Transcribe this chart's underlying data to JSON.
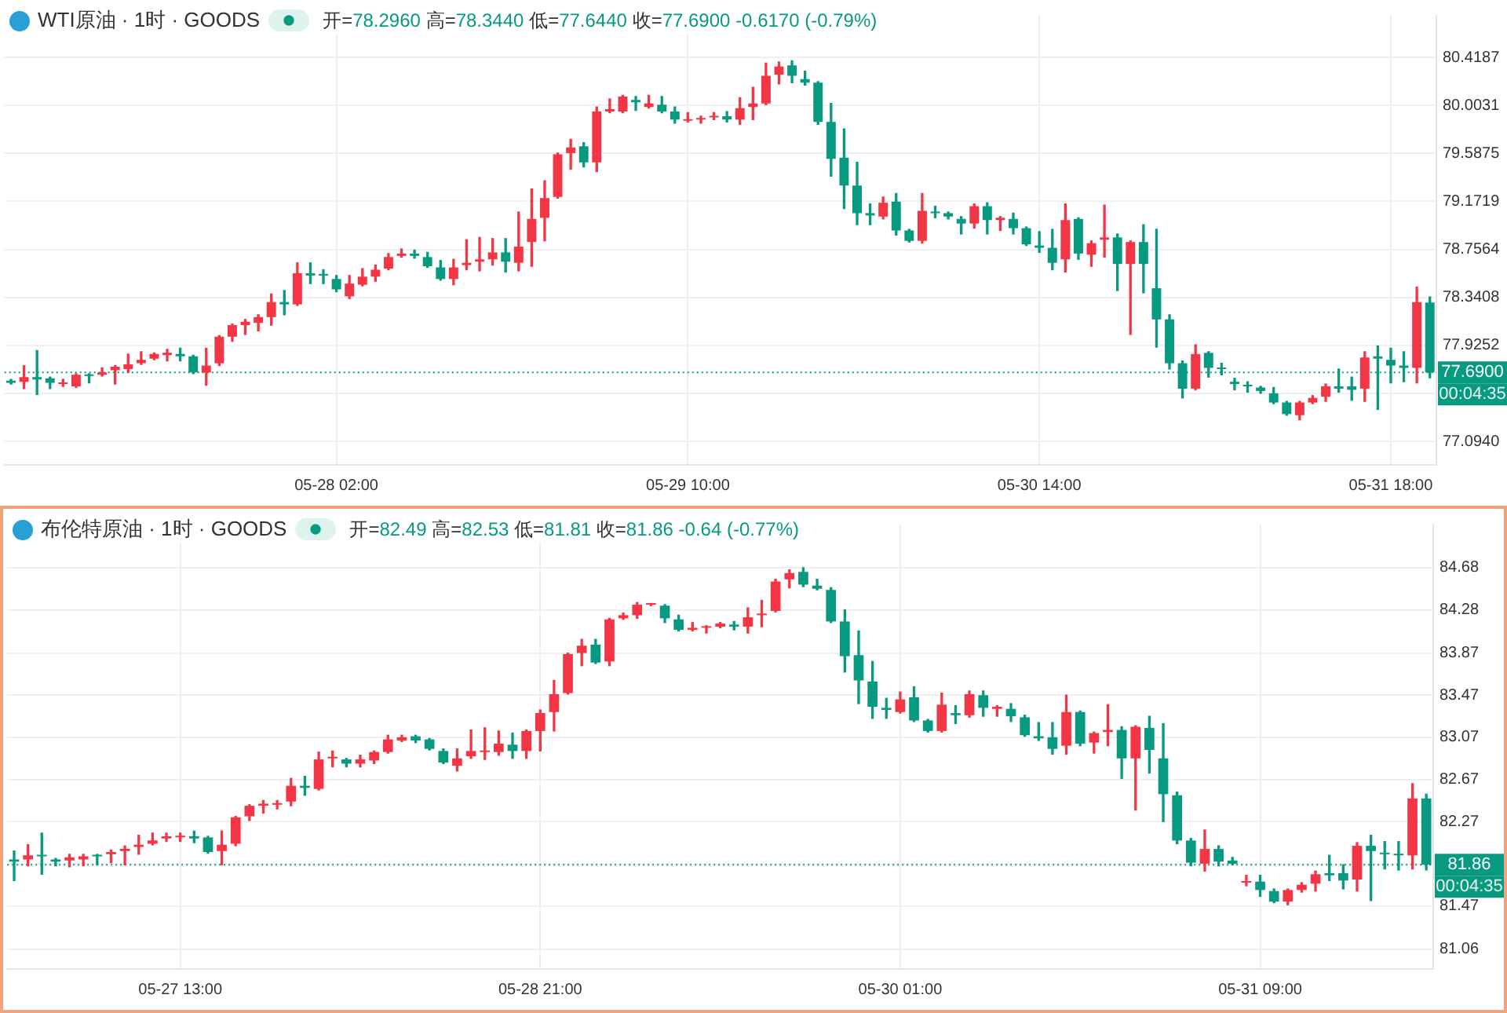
{
  "chart_data": [
    {
      "type": "candlestick",
      "title": "WTI原油 · 1时 · GOODS",
      "subtitle": "开=78.2960 高=78.3440 低=77.6440 收=77.6900 -0.6170 (-0.79%)",
      "categories": [
        null,
        null,
        null,
        null,
        null,
        null,
        null,
        null,
        null,
        null,
        null,
        null,
        null,
        null,
        null,
        null,
        null,
        null,
        null,
        null,
        null,
        null,
        null,
        null,
        null,
        "05-28 02:00",
        null,
        null,
        null,
        null,
        null,
        null,
        null,
        null,
        null,
        null,
        null,
        null,
        null,
        null,
        null,
        null,
        null,
        null,
        null,
        null,
        null,
        null,
        null,
        null,
        null,
        null,
        "05-29 10:00",
        null,
        null,
        null,
        null,
        null,
        null,
        null,
        null,
        null,
        null,
        null,
        null,
        null,
        null,
        null,
        null,
        null,
        null,
        null,
        null,
        null,
        null,
        null,
        null,
        null,
        null,
        "05-30 14:00",
        null,
        null,
        null,
        null,
        null,
        null,
        null,
        null,
        null,
        null,
        null,
        null,
        null,
        null,
        null,
        null,
        null,
        null,
        null,
        null,
        null,
        null,
        null,
        null,
        null,
        null,
        "05-31 18:00",
        null,
        null,
        null
      ],
      "ohlc": [
        [
          77.62,
          77.63,
          77.59,
          77.6
        ],
        [
          77.61,
          77.75,
          77.55,
          77.65
        ],
        [
          77.65,
          77.88,
          77.5,
          77.63
        ],
        [
          77.64,
          77.65,
          77.55,
          77.6
        ],
        [
          77.59,
          77.63,
          77.57,
          77.6
        ],
        [
          77.57,
          77.68,
          77.56,
          77.67
        ],
        [
          77.67,
          77.68,
          77.6,
          77.66
        ],
        [
          77.67,
          77.73,
          77.66,
          77.69
        ],
        [
          77.71,
          77.75,
          77.59,
          77.74
        ],
        [
          77.72,
          77.85,
          77.69,
          77.76
        ],
        [
          77.77,
          77.87,
          77.76,
          77.8
        ],
        [
          77.81,
          77.86,
          77.8,
          77.85
        ],
        [
          77.84,
          77.89,
          77.79,
          77.86
        ],
        [
          77.85,
          77.9,
          77.79,
          77.83
        ],
        [
          77.83,
          77.84,
          77.68,
          77.69
        ],
        [
          77.69,
          77.9,
          77.58,
          77.75
        ],
        [
          77.77,
          78.01,
          77.75,
          78.0
        ],
        [
          78.0,
          78.11,
          77.96,
          78.1
        ],
        [
          78.1,
          78.15,
          78.02,
          78.13
        ],
        [
          78.12,
          78.19,
          78.05,
          78.17
        ],
        [
          78.17,
          78.37,
          78.1,
          78.3
        ],
        [
          78.3,
          78.4,
          78.19,
          78.28
        ],
        [
          78.28,
          78.64,
          78.27,
          78.55
        ],
        [
          78.55,
          78.64,
          78.46,
          78.53
        ],
        [
          78.54,
          78.58,
          78.46,
          78.53
        ],
        [
          78.5,
          78.53,
          78.39,
          78.41
        ],
        [
          78.35,
          78.53,
          78.33,
          78.46
        ],
        [
          78.45,
          78.59,
          78.44,
          78.52
        ],
        [
          78.52,
          78.62,
          78.48,
          78.58
        ],
        [
          78.59,
          78.72,
          78.58,
          78.69
        ],
        [
          78.7,
          78.76,
          78.69,
          78.72
        ],
        [
          78.72,
          78.75,
          78.68,
          78.7
        ],
        [
          78.69,
          78.73,
          78.6,
          78.61
        ],
        [
          78.6,
          78.66,
          78.49,
          78.5
        ],
        [
          78.5,
          78.67,
          78.45,
          78.6
        ],
        [
          78.62,
          78.84,
          78.58,
          78.64
        ],
        [
          78.65,
          78.86,
          78.57,
          78.67
        ],
        [
          78.67,
          78.85,
          78.62,
          78.73
        ],
        [
          78.73,
          78.85,
          78.56,
          78.65
        ],
        [
          78.64,
          79.08,
          78.57,
          78.78
        ],
        [
          78.82,
          79.28,
          78.61,
          79.02
        ],
        [
          79.03,
          79.35,
          78.83,
          79.2
        ],
        [
          79.21,
          79.59,
          79.2,
          79.58
        ],
        [
          79.59,
          79.71,
          79.45,
          79.64
        ],
        [
          79.65,
          79.68,
          79.47,
          79.51
        ],
        [
          79.51,
          79.99,
          79.43,
          79.95
        ],
        [
          79.95,
          80.06,
          79.94,
          79.97
        ],
        [
          79.95,
          80.09,
          79.94,
          80.08
        ],
        [
          80.05,
          80.08,
          79.96,
          80.03
        ],
        [
          79.99,
          80.09,
          79.98,
          80.02
        ],
        [
          80.01,
          80.08,
          79.94,
          79.95
        ],
        [
          79.95,
          79.99,
          79.85,
          79.88
        ],
        [
          79.87,
          79.94,
          79.86,
          79.88
        ],
        [
          79.88,
          79.91,
          79.85,
          79.89
        ],
        [
          79.9,
          79.94,
          79.88,
          79.91
        ],
        [
          79.91,
          79.95,
          79.86,
          79.88
        ],
        [
          79.88,
          80.07,
          79.84,
          79.98
        ],
        [
          79.99,
          80.16,
          79.88,
          80.02
        ],
        [
          80.02,
          80.37,
          80.01,
          80.26
        ],
        [
          80.27,
          80.38,
          80.19,
          80.34
        ],
        [
          80.35,
          80.39,
          80.2,
          80.26
        ],
        [
          80.23,
          80.3,
          80.18,
          80.2
        ],
        [
          80.2,
          80.21,
          79.84,
          79.86
        ],
        [
          79.86,
          80.02,
          79.39,
          79.54
        ],
        [
          79.55,
          79.8,
          79.11,
          79.31
        ],
        [
          79.31,
          79.51,
          78.97,
          79.07
        ],
        [
          79.07,
          79.15,
          78.97,
          79.05
        ],
        [
          79.04,
          79.21,
          79.02,
          79.16
        ],
        [
          79.17,
          79.24,
          78.88,
          78.92
        ],
        [
          78.92,
          78.93,
          78.82,
          78.83
        ],
        [
          78.83,
          79.24,
          78.81,
          79.09
        ],
        [
          79.08,
          79.13,
          79.03,
          79.07
        ],
        [
          79.07,
          79.08,
          79.02,
          79.04
        ],
        [
          79.02,
          79.04,
          78.89,
          78.98
        ],
        [
          78.98,
          79.15,
          78.94,
          79.13
        ],
        [
          79.13,
          79.16,
          78.89,
          79.01
        ],
        [
          79.01,
          79.04,
          78.92,
          79.03
        ],
        [
          79.02,
          79.07,
          78.89,
          78.94
        ],
        [
          78.94,
          78.95,
          78.79,
          78.8
        ],
        [
          78.79,
          78.91,
          78.73,
          78.77
        ],
        [
          78.77,
          78.93,
          78.58,
          78.64
        ],
        [
          78.67,
          79.15,
          78.56,
          79.01
        ],
        [
          79.02,
          79.03,
          78.67,
          78.72
        ],
        [
          78.71,
          78.83,
          78.61,
          78.81
        ],
        [
          78.84,
          79.14,
          78.69,
          78.86
        ],
        [
          78.86,
          78.89,
          78.4,
          78.63
        ],
        [
          78.63,
          78.83,
          78.02,
          78.82
        ],
        [
          78.82,
          78.97,
          78.38,
          78.63
        ],
        [
          78.42,
          78.93,
          77.91,
          78.15
        ],
        [
          78.15,
          78.19,
          77.72,
          77.77
        ],
        [
          77.77,
          77.79,
          77.47,
          77.55
        ],
        [
          77.55,
          77.93,
          77.54,
          77.85
        ],
        [
          77.86,
          77.87,
          77.65,
          77.73
        ],
        [
          77.73,
          77.77,
          77.67,
          77.72
        ],
        [
          77.61,
          77.64,
          77.54,
          77.59
        ],
        [
          77.58,
          77.61,
          77.52,
          77.57
        ],
        [
          77.56,
          77.57,
          77.51,
          77.53
        ],
        [
          77.51,
          77.56,
          77.42,
          77.43
        ],
        [
          77.43,
          77.44,
          77.32,
          77.33
        ],
        [
          77.32,
          77.44,
          77.28,
          77.43
        ],
        [
          77.43,
          77.49,
          77.42,
          77.47
        ],
        [
          77.48,
          77.59,
          77.44,
          77.57
        ],
        [
          77.57,
          77.72,
          77.52,
          77.55
        ],
        [
          77.57,
          77.65,
          77.45,
          77.54
        ],
        [
          77.55,
          77.87,
          77.44,
          77.82
        ],
        [
          77.83,
          77.92,
          77.37,
          77.81
        ],
        [
          77.8,
          77.9,
          77.6,
          77.75
        ],
        [
          77.75,
          77.87,
          77.61,
          77.73
        ],
        [
          77.73,
          78.43,
          77.6,
          78.3
        ],
        [
          78.296,
          78.344,
          77.644,
          77.69
        ]
      ],
      "colors": [
        "#089981",
        "#f23645",
        "#089981",
        "#089981",
        "#f23645",
        "#f23645",
        "#089981",
        "#f23645",
        "#f23645",
        "#f23645",
        "#f23645",
        "#f23645",
        "#f23645",
        "#089981",
        "#089981",
        "#f23645",
        "#f23645",
        "#f23645",
        "#f23645",
        "#f23645",
        "#f23645",
        "#089981",
        "#f23645",
        "#089981",
        "#089981",
        "#089981",
        "#f23645",
        "#f23645",
        "#f23645",
        "#f23645",
        "#f23645",
        "#089981",
        "#089981",
        "#089981",
        "#f23645",
        "#f23645",
        "#f23645",
        "#f23645",
        "#089981",
        "#f23645",
        "#f23645",
        "#f23645",
        "#f23645",
        "#f23645",
        "#089981",
        "#f23645",
        "#f23645",
        "#f23645",
        "#089981",
        "#f23645",
        "#089981",
        "#089981",
        "#f23645",
        "#f23645",
        "#f23645",
        "#089981",
        "#f23645",
        "#f23645",
        "#f23645",
        "#f23645",
        "#089981",
        "#089981",
        "#089981",
        "#089981",
        "#089981",
        "#089981",
        "#089981",
        "#f23645",
        "#089981",
        "#089981",
        "#f23645",
        "#089981",
        "#089981",
        "#089981",
        "#f23645",
        "#089981",
        "#f23645",
        "#089981",
        "#089981",
        "#089981",
        "#089981",
        "#f23645",
        "#089981",
        "#f23645",
        "#f23645",
        "#089981",
        "#f23645",
        "#089981",
        "#089981",
        "#089981",
        "#089981",
        "#f23645",
        "#089981",
        "#089981",
        "#089981",
        "#089981",
        "#089981",
        "#089981",
        "#089981",
        "#f23645",
        "#f23645",
        "#f23645",
        "#089981",
        "#089981",
        "#f23645",
        "#089981",
        "#089981",
        "#089981",
        "#f23645",
        "#089981"
      ],
      "ylim": [
        76.89,
        80.78
      ],
      "yticks": [
        80.4187,
        80.0031,
        79.5875,
        79.1719,
        78.7564,
        78.3408,
        77.9252,
        {
          "value": 77.5096,
          "label": null
        },
        {
          "value": 77.094,
          "label": "77.0940"
        }
      ],
      "grid": true,
      "ref_lines": [
        {
          "axis": "y",
          "value": 77.69,
          "label": "77.6900",
          "color": "#089981",
          "line_style": "dotted"
        }
      ],
      "annotations": [
        "00:04:35"
      ]
    },
    {
      "type": "candlestick",
      "title": "布伦特原油 · 1时 · GOODS",
      "subtitle": "开=82.49 高=82.53 低=81.81 收=81.86 -0.64 (-0.77%)",
      "categories": [
        null,
        null,
        null,
        null,
        null,
        null,
        null,
        null,
        null,
        null,
        null,
        null,
        "05-27 13:00",
        null,
        null,
        null,
        null,
        null,
        null,
        null,
        null,
        null,
        null,
        null,
        null,
        null,
        null,
        null,
        null,
        null,
        null,
        null,
        null,
        null,
        null,
        null,
        null,
        null,
        "05-28 21:00",
        null,
        null,
        null,
        null,
        null,
        null,
        null,
        null,
        null,
        null,
        null,
        null,
        null,
        null,
        null,
        null,
        null,
        null,
        null,
        null,
        null,
        null,
        null,
        null,
        null,
        "05-30 01:00",
        null,
        null,
        null,
        null,
        null,
        null,
        null,
        null,
        null,
        null,
        null,
        null,
        null,
        null,
        null,
        null,
        null,
        null,
        null,
        null,
        null,
        null,
        null,
        null,
        null,
        "05-31 09:00",
        null,
        null,
        null,
        null,
        null,
        null,
        null,
        null,
        null,
        null,
        null,
        null
      ],
      "ohlc": [
        [
          81.91,
          81.99,
          81.71,
          81.89
        ],
        [
          81.91,
          82.05,
          81.85,
          81.95
        ],
        [
          81.95,
          82.16,
          81.77,
          81.94
        ],
        [
          81.91,
          81.92,
          81.85,
          81.89
        ],
        [
          81.9,
          81.96,
          81.84,
          81.93
        ],
        [
          81.91,
          81.96,
          81.85,
          81.94
        ],
        [
          81.95,
          81.96,
          81.86,
          81.94
        ],
        [
          81.96,
          82.0,
          81.88,
          81.98
        ],
        [
          81.99,
          82.04,
          81.86,
          82.01
        ],
        [
          82.03,
          82.14,
          81.96,
          82.05
        ],
        [
          82.06,
          82.16,
          82.05,
          82.09
        ],
        [
          82.11,
          82.16,
          82.08,
          82.13
        ],
        [
          82.12,
          82.16,
          82.08,
          82.13
        ],
        [
          82.13,
          82.18,
          82.07,
          82.11
        ],
        [
          82.12,
          82.13,
          81.97,
          81.98
        ],
        [
          81.99,
          82.18,
          81.86,
          82.05
        ],
        [
          82.06,
          82.32,
          82.04,
          82.31
        ],
        [
          82.32,
          82.43,
          82.28,
          82.42
        ],
        [
          82.42,
          82.47,
          82.35,
          82.44
        ],
        [
          82.43,
          82.47,
          82.39,
          82.44
        ],
        [
          82.46,
          82.68,
          82.42,
          82.61
        ],
        [
          82.61,
          82.7,
          82.52,
          82.59
        ],
        [
          82.58,
          82.93,
          82.57,
          82.86
        ],
        [
          82.87,
          82.94,
          82.79,
          82.88
        ],
        [
          82.86,
          82.87,
          82.79,
          82.82
        ],
        [
          82.82,
          82.9,
          82.79,
          82.86
        ],
        [
          82.85,
          82.94,
          82.82,
          82.93
        ],
        [
          82.93,
          83.09,
          82.92,
          83.05
        ],
        [
          83.04,
          83.09,
          83.03,
          83.07
        ],
        [
          83.08,
          83.09,
          83.02,
          83.04
        ],
        [
          83.05,
          83.06,
          82.95,
          82.96
        ],
        [
          82.94,
          82.96,
          82.82,
          82.83
        ],
        [
          82.8,
          82.96,
          82.75,
          82.87
        ],
        [
          82.89,
          83.14,
          82.87,
          82.94
        ],
        [
          82.93,
          83.16,
          82.86,
          82.94
        ],
        [
          82.93,
          83.13,
          82.9,
          83.01
        ],
        [
          83.0,
          83.11,
          82.87,
          82.94
        ],
        [
          82.94,
          83.14,
          82.87,
          83.13
        ],
        [
          83.13,
          83.33,
          82.94,
          83.3
        ],
        [
          83.31,
          83.61,
          83.13,
          83.48
        ],
        [
          83.49,
          83.87,
          83.48,
          83.86
        ],
        [
          83.87,
          84.0,
          83.75,
          83.94
        ],
        [
          83.95,
          84.0,
          83.77,
          83.78
        ],
        [
          83.79,
          84.2,
          83.75,
          84.19
        ],
        [
          84.2,
          84.25,
          84.19,
          84.23
        ],
        [
          84.23,
          84.35,
          84.2,
          84.33
        ],
        [
          84.33,
          84.34,
          84.32,
          84.33
        ],
        [
          84.32,
          84.33,
          84.16,
          84.2
        ],
        [
          84.19,
          84.23,
          84.08,
          84.09
        ],
        [
          84.09,
          84.16,
          84.08,
          84.11
        ],
        [
          84.11,
          84.13,
          84.06,
          84.12
        ],
        [
          84.12,
          84.16,
          84.11,
          84.15
        ],
        [
          84.14,
          84.17,
          84.09,
          84.12
        ],
        [
          84.12,
          84.3,
          84.06,
          84.21
        ],
        [
          84.23,
          84.37,
          84.12,
          84.24
        ],
        [
          84.27,
          84.57,
          84.26,
          84.55
        ],
        [
          84.57,
          84.66,
          84.49,
          84.63
        ],
        [
          84.64,
          84.68,
          84.5,
          84.52
        ],
        [
          84.51,
          84.57,
          84.47,
          84.48
        ],
        [
          84.47,
          84.49,
          84.16,
          84.17
        ],
        [
          84.17,
          84.28,
          83.69,
          83.84
        ],
        [
          83.85,
          84.08,
          83.39,
          83.61
        ],
        [
          83.6,
          83.79,
          83.25,
          83.36
        ],
        [
          83.35,
          83.44,
          83.25,
          83.33
        ],
        [
          83.31,
          83.5,
          83.3,
          83.43
        ],
        [
          83.45,
          83.55,
          83.22,
          83.23
        ],
        [
          83.23,
          83.24,
          83.12,
          83.13
        ],
        [
          83.13,
          83.49,
          83.12,
          83.38
        ],
        [
          83.3,
          83.37,
          83.2,
          83.28
        ],
        [
          83.28,
          83.51,
          83.26,
          83.48
        ],
        [
          83.47,
          83.51,
          83.27,
          83.35
        ],
        [
          83.34,
          83.37,
          83.27,
          83.36
        ],
        [
          83.34,
          83.39,
          83.22,
          83.27
        ],
        [
          83.26,
          83.28,
          83.08,
          83.09
        ],
        [
          83.08,
          83.21,
          83.04,
          83.06
        ],
        [
          83.07,
          83.21,
          82.91,
          82.96
        ],
        [
          82.99,
          83.47,
          82.91,
          83.31
        ],
        [
          83.31,
          83.32,
          82.99,
          83.01
        ],
        [
          83.02,
          83.12,
          82.92,
          83.11
        ],
        [
          83.12,
          83.38,
          82.99,
          83.14
        ],
        [
          83.14,
          83.17,
          82.68,
          82.87
        ],
        [
          82.87,
          83.18,
          82.38,
          83.17
        ],
        [
          83.16,
          83.27,
          82.73,
          82.95
        ],
        [
          82.87,
          83.2,
          82.27,
          82.53
        ],
        [
          82.52,
          82.55,
          82.06,
          82.09
        ],
        [
          82.09,
          82.11,
          81.85,
          81.88
        ],
        [
          81.87,
          82.19,
          81.8,
          82.01
        ],
        [
          82.01,
          82.04,
          81.85,
          81.89
        ],
        [
          81.9,
          81.93,
          81.86,
          81.87
        ],
        [
          81.69,
          81.76,
          81.66,
          81.7
        ],
        [
          81.7,
          81.76,
          81.56,
          81.62
        ],
        [
          81.61,
          81.63,
          81.5,
          81.51
        ],
        [
          81.51,
          81.63,
          81.48,
          81.62
        ],
        [
          81.62,
          81.69,
          81.6,
          81.67
        ],
        [
          81.68,
          81.8,
          81.61,
          81.77
        ],
        [
          81.78,
          81.95,
          81.71,
          81.76
        ],
        [
          81.78,
          81.86,
          81.63,
          81.71
        ],
        [
          81.72,
          82.07,
          81.61,
          82.04
        ],
        [
          82.04,
          82.14,
          81.52,
          81.99
        ],
        [
          81.97,
          82.08,
          81.82,
          81.96
        ],
        [
          81.96,
          82.08,
          81.81,
          81.95
        ],
        [
          81.95,
          82.63,
          81.82,
          82.49
        ],
        [
          82.49,
          82.53,
          81.81,
          81.86
        ]
      ],
      "colors": [
        "#089981",
        "#f23645",
        "#089981",
        "#089981",
        "#f23645",
        "#f23645",
        "#089981",
        "#f23645",
        "#f23645",
        "#f23645",
        "#f23645",
        "#f23645",
        "#f23645",
        "#089981",
        "#089981",
        "#f23645",
        "#f23645",
        "#f23645",
        "#f23645",
        "#f23645",
        "#f23645",
        "#089981",
        "#f23645",
        "#f23645",
        "#089981",
        "#f23645",
        "#f23645",
        "#f23645",
        "#f23645",
        "#089981",
        "#089981",
        "#089981",
        "#f23645",
        "#f23645",
        "#f23645",
        "#f23645",
        "#089981",
        "#f23645",
        "#f23645",
        "#f23645",
        "#f23645",
        "#f23645",
        "#089981",
        "#f23645",
        "#f23645",
        "#f23645",
        "#f23645",
        "#089981",
        "#089981",
        "#f23645",
        "#f23645",
        "#f23645",
        "#089981",
        "#f23645",
        "#f23645",
        "#f23645",
        "#f23645",
        "#089981",
        "#089981",
        "#089981",
        "#089981",
        "#089981",
        "#089981",
        "#089981",
        "#f23645",
        "#089981",
        "#089981",
        "#f23645",
        "#089981",
        "#f23645",
        "#089981",
        "#f23645",
        "#089981",
        "#089981",
        "#089981",
        "#089981",
        "#f23645",
        "#089981",
        "#f23645",
        "#f23645",
        "#089981",
        "#f23645",
        "#089981",
        "#089981",
        "#089981",
        "#089981",
        "#f23645",
        "#089981",
        "#089981",
        "#f23645",
        "#089981",
        "#089981",
        "#f23645",
        "#f23645",
        "#f23645",
        "#089981",
        "#089981",
        "#f23645",
        "#089981",
        "#089981",
        "#089981",
        "#f23645",
        "#089981"
      ],
      "ylim": [
        80.87,
        85.09
      ],
      "yticks": [
        84.68,
        84.28,
        83.87,
        83.47,
        83.07,
        82.67,
        82.27,
        {
          "value": 81.87,
          "label": null
        },
        81.47,
        81.06
      ],
      "grid": true,
      "ref_lines": [
        {
          "axis": "y",
          "value": 81.86,
          "label": "81.86",
          "color": "#089981",
          "line_style": "dotted"
        }
      ],
      "annotations": [
        "00:04:35"
      ]
    }
  ]
}
